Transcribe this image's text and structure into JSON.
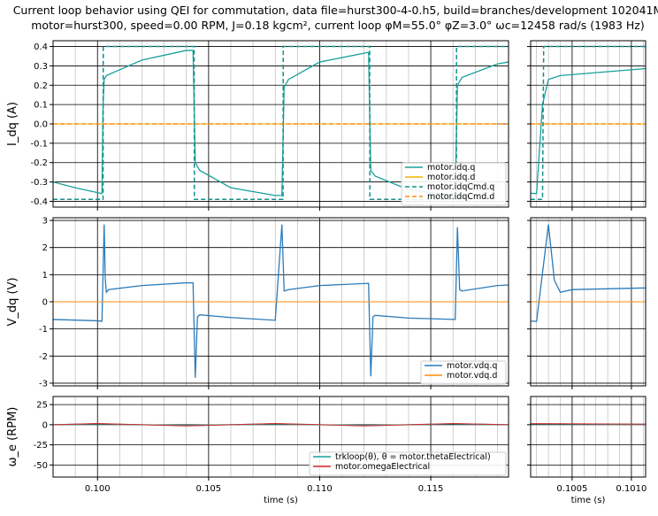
{
  "figure": {
    "title_lines": [
      "Current loop behavior using QEI for commutation, data file=hurst300-4-0.h5, build=branches/development 102041M",
      "motor=hurst300, speed=0.00 RPM, J=0.18 kgcm², current loop φM=55.0° φZ=3.0° ωc=12458 rad/s (1983 Hz)"
    ]
  },
  "colors": {
    "teal": "#17a09a",
    "teal_dark": "#12908a",
    "orange": "#ff8c0a",
    "orange_dim": "#f4b400",
    "blue": "#2b7bba",
    "red": "#d62728",
    "grid": "#000000",
    "minor_grid": "#b0b0b0"
  },
  "chart_data": [
    {
      "id": "iqd",
      "type": "line",
      "ylabel": "I_dq (A)",
      "xlim": [
        0.098,
        0.1185
      ],
      "zoom_xlim": [
        0.10015,
        0.10112
      ],
      "ylim": [
        -0.43,
        0.43
      ],
      "yticks": [
        "0.4",
        "0.3",
        "0.2",
        "0.1",
        "0.0",
        "-0.1",
        "-0.2",
        "-0.3",
        "-0.4"
      ],
      "ytick_values": [
        0.4,
        0.3,
        0.2,
        0.1,
        0.0,
        -0.1,
        -0.2,
        -0.3,
        -0.4
      ],
      "legend": {
        "placement": "lower-right",
        "entries": [
          "motor.idq.q",
          "motor.idq.d",
          "motor.idqCmd.q",
          "motor.idqCmd.d"
        ]
      },
      "series": [
        {
          "name": "motor.idq.q",
          "color_key": "teal",
          "style": "solid",
          "x": [
            0.098,
            0.099,
            0.1,
            0.1002,
            0.10025,
            0.1003,
            0.1004,
            0.102,
            0.104,
            0.1043,
            0.1044,
            0.1046,
            0.106,
            0.108,
            0.1083,
            0.1084,
            0.1086,
            0.11,
            0.1122,
            0.1123,
            0.1125,
            0.114,
            0.1161,
            0.1162,
            0.1164,
            0.118,
            0.1185
          ],
          "y": [
            -0.3,
            -0.33,
            -0.355,
            -0.36,
            0.1,
            0.23,
            0.25,
            0.33,
            0.38,
            0.38,
            -0.2,
            -0.24,
            -0.33,
            -0.37,
            -0.37,
            0.19,
            0.23,
            0.32,
            0.37,
            -0.24,
            -0.27,
            -0.34,
            -0.37,
            0.2,
            0.24,
            0.31,
            0.32
          ]
        },
        {
          "name": "motor.idq.d",
          "color_key": "orange_dim",
          "style": "solid",
          "x": [
            0.098,
            0.118
          ],
          "y": [
            0.0,
            0.0
          ]
        },
        {
          "name": "motor.idqCmd.q",
          "color_key": "teal_dark",
          "style": "dashed",
          "x": [
            0.098,
            0.10025,
            0.10026,
            0.10435,
            0.10436,
            0.10835,
            0.10836,
            0.11225,
            0.11226,
            0.11615,
            0.11616,
            0.1185
          ],
          "y": [
            -0.39,
            -0.39,
            0.4,
            0.4,
            -0.39,
            -0.39,
            0.4,
            0.4,
            -0.39,
            -0.39,
            0.4,
            0.4
          ]
        },
        {
          "name": "motor.idqCmd.d",
          "color_key": "orange",
          "style": "dashed",
          "x": [
            0.098,
            0.1185
          ],
          "y": [
            0.0,
            0.0
          ]
        }
      ]
    },
    {
      "id": "vdq",
      "type": "line",
      "ylabel": "V_dq (V)",
      "xlim": [
        0.098,
        0.1185
      ],
      "zoom_xlim": [
        0.10015,
        0.10112
      ],
      "ylim": [
        -3.1,
        3.1
      ],
      "yticks": [
        "3",
        "2",
        "1",
        "0",
        "-1",
        "-2",
        "-3"
      ],
      "ytick_values": [
        3,
        2,
        1,
        0,
        -1,
        -2,
        -3
      ],
      "legend": {
        "placement": "lower-right",
        "entries": [
          "motor.vdq.q",
          "motor.vdq.d"
        ]
      },
      "series": [
        {
          "name": "motor.vdq.q",
          "color_key": "blue",
          "style": "solid",
          "x": [
            0.098,
            0.1,
            0.1002,
            0.1003,
            0.10035,
            0.1004,
            0.1005,
            0.102,
            0.104,
            0.1043,
            0.1044,
            0.1045,
            0.1046,
            0.106,
            0.108,
            0.1083,
            0.1084,
            0.1085,
            0.1086,
            0.11,
            0.1122,
            0.1123,
            0.1124,
            0.1125,
            0.114,
            0.1161,
            0.1162,
            0.1163,
            0.1164,
            0.118,
            0.1185
          ],
          "y": [
            -0.65,
            -0.7,
            -0.72,
            2.85,
            0.8,
            0.35,
            0.45,
            0.6,
            0.7,
            0.7,
            -2.8,
            -0.55,
            -0.48,
            -0.58,
            -0.68,
            2.85,
            0.4,
            0.42,
            0.45,
            0.6,
            0.68,
            -2.75,
            -0.55,
            -0.5,
            -0.6,
            -0.65,
            2.75,
            0.45,
            0.4,
            0.6,
            0.62
          ]
        },
        {
          "name": "motor.vdq.d",
          "color_key": "orange",
          "style": "solid",
          "x": [
            0.098,
            0.1185
          ],
          "y": [
            0.0,
            0.0
          ]
        }
      ]
    },
    {
      "id": "omega",
      "type": "line",
      "ylabel": "ω_e (RPM)",
      "xlabel": "time (s)",
      "xlim": [
        0.098,
        0.1185
      ],
      "zoom_xlim": [
        0.10015,
        0.10112
      ],
      "ylim": [
        -65,
        35
      ],
      "yticks": [
        "25",
        "0",
        "-25",
        "-50"
      ],
      "ytick_values": [
        25,
        0,
        -25,
        -50
      ],
      "xticks": [
        "0.100",
        "0.105",
        "0.110",
        "0.115"
      ],
      "xtick_values": [
        0.1,
        0.105,
        0.11,
        0.115
      ],
      "zoom_xticks": [
        "0.1005",
        "0.1010"
      ],
      "zoom_xtick_values": [
        0.1005,
        0.101
      ],
      "legend": {
        "placement": "lower-right",
        "entries": [
          "trkloop(θ), θ = motor.thetaElectrical)",
          "motor.omegaElectrical"
        ]
      },
      "series": [
        {
          "name": "trkloop(θ), θ = motor.thetaElectrical)",
          "color_key": "teal",
          "style": "solid",
          "x": [
            0.098,
            0.1,
            0.102,
            0.104,
            0.106,
            0.108,
            0.11,
            0.112,
            0.114,
            0.116,
            0.1185
          ],
          "y": [
            0,
            1,
            0,
            -1,
            0,
            1,
            0,
            -1,
            0,
            1,
            0
          ]
        },
        {
          "name": "motor.omegaElectrical",
          "color_key": "red",
          "style": "solid",
          "x": [
            0.098,
            0.1,
            0.102,
            0.104,
            0.106,
            0.108,
            0.11,
            0.112,
            0.114,
            0.116,
            0.1185
          ],
          "y": [
            0,
            1.5,
            0,
            -1.5,
            0,
            1.5,
            0,
            -1.5,
            0,
            1.5,
            0
          ]
        }
      ]
    }
  ]
}
